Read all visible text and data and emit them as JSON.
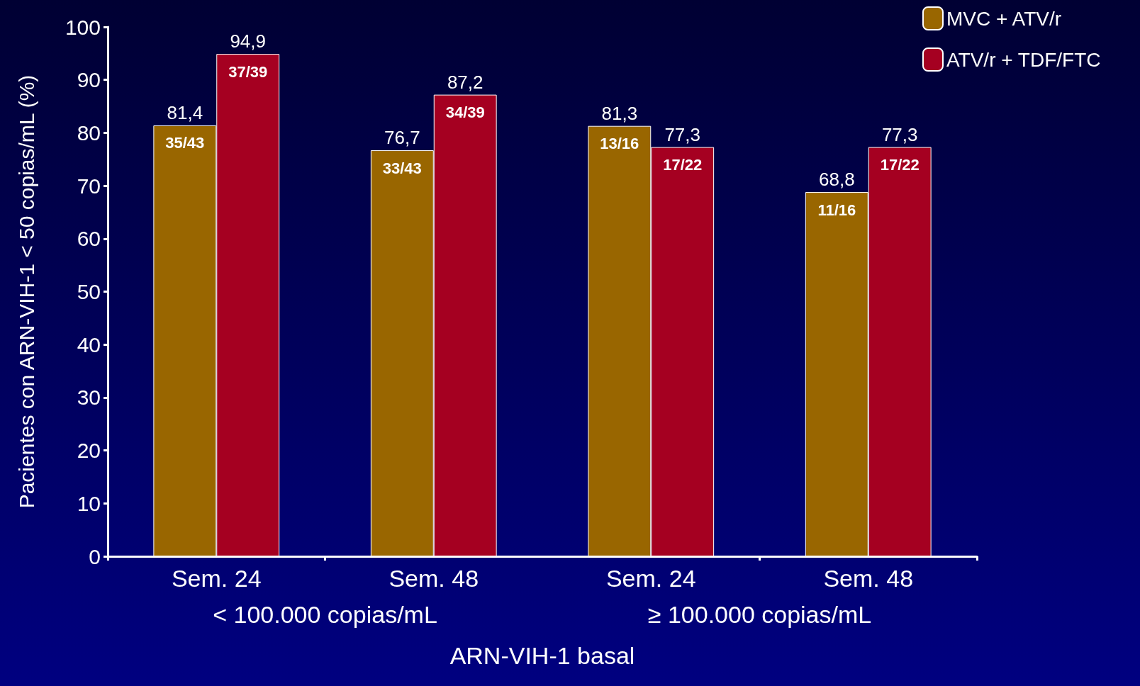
{
  "chart_data": {
    "type": "bar",
    "ylabel": "Pacientes con ARN-VIH-1 < 50 copias/mL (%)",
    "xlabel": "ARN-VIH-1 basal",
    "categories": [
      "Sem. 24",
      "Sem. 48",
      "Sem. 24",
      "Sem. 48"
    ],
    "series": [
      {
        "name": "MVC + ATV/r",
        "color": "#996600",
        "values": [
          81.4,
          76.7,
          81.3,
          68.8
        ],
        "value_labels": [
          "81,4",
          "76,7",
          "81,3",
          "68,8"
        ]
      },
      {
        "name": "ATV/r + TDF/FTC",
        "color": "#a50021",
        "values": [
          94.9,
          87.2,
          77.3,
          77.3
        ],
        "value_labels": [
          "94,9",
          "87,2",
          "77,3",
          "77,3"
        ]
      }
    ],
    "ylim": [
      0,
      100
    ],
    "yticks": [
      0,
      10,
      20,
      30,
      40,
      50,
      60,
      70,
      80,
      90,
      100
    ],
    "grid": false,
    "legend": "top right",
    "annotations": [
      "35/43",
      "37/39",
      "33/43",
      "34/39",
      "13/16",
      "17/22",
      "11/16",
      "17/22",
      "< 100.000 copias/mL",
      "≥ 100.000 copias/mL"
    ]
  }
}
